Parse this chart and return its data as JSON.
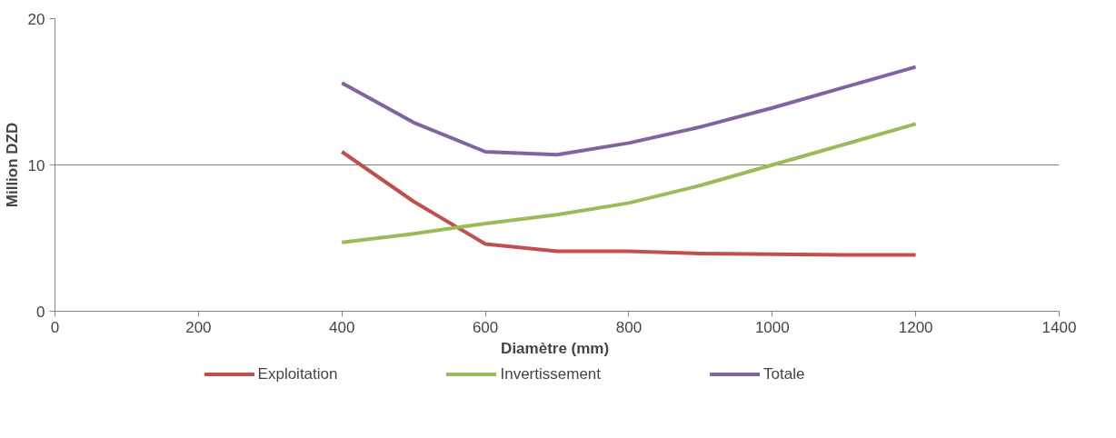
{
  "chart_data": {
    "type": "line",
    "xlabel": "Diamètre  (mm)",
    "ylabel": "Million DZD",
    "x": [
      400,
      500,
      600,
      700,
      800,
      900,
      1000,
      1100,
      1200
    ],
    "series": [
      {
        "name": "Exploitation",
        "color": "#c0504d",
        "values": [
          10.9,
          7.5,
          4.6,
          4.1,
          4.1,
          3.95,
          3.9,
          3.85,
          3.85
        ]
      },
      {
        "name": "Invertissement",
        "color": "#9bbb59",
        "values": [
          4.7,
          5.3,
          6.0,
          6.6,
          7.4,
          8.6,
          10.0,
          11.4,
          12.8
        ]
      },
      {
        "name": "Totale",
        "color": "#8064a2",
        "values": [
          15.6,
          12.9,
          10.9,
          10.7,
          11.5,
          12.6,
          13.9,
          15.3,
          16.7
        ]
      }
    ],
    "xlim": [
      0,
      1400
    ],
    "xticks": [
      0,
      200,
      400,
      600,
      800,
      1000,
      1200,
      1400
    ],
    "ylim": [
      0,
      20
    ],
    "yticks": [
      0,
      10,
      20
    ],
    "grid": "y",
    "legend": "bottom",
    "marker": "none",
    "line_style": "solid"
  }
}
